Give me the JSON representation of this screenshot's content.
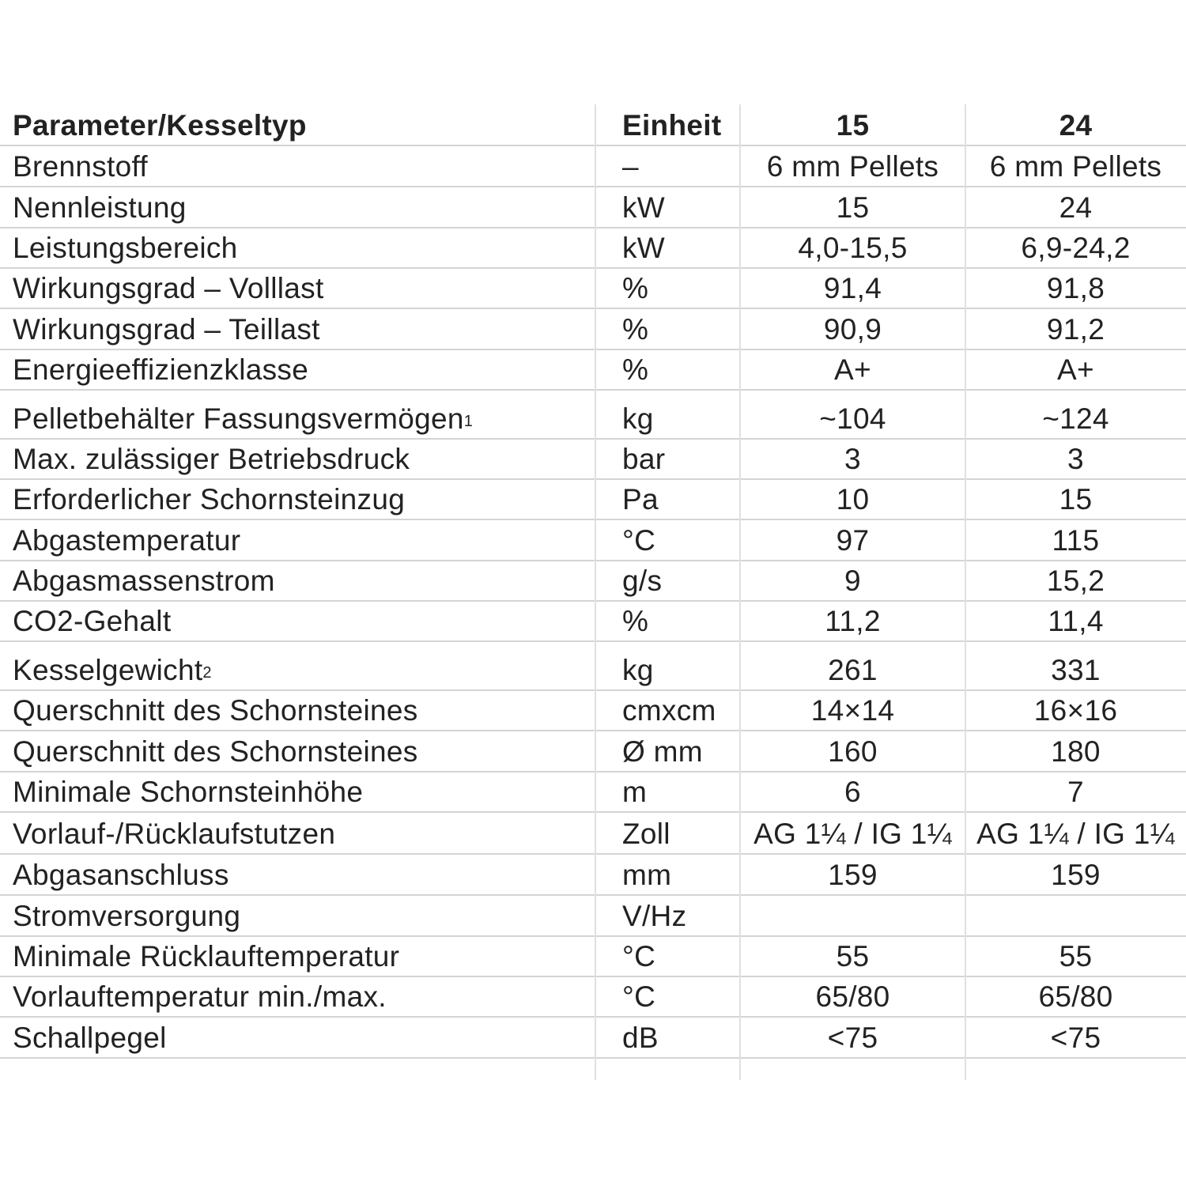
{
  "table": {
    "header": [
      "Parameter/Kesseltyp",
      "Einheit",
      "15",
      "24"
    ],
    "rows": [
      [
        "Brennstoff",
        "–",
        "6 mm Pellets",
        "6 mm Pellets"
      ],
      [
        "Nennleistung",
        "kW",
        "15",
        "24"
      ],
      [
        "Leistungsbereich",
        "kW",
        "4,0-15,5",
        "6,9-24,2"
      ],
      [
        "Wirkungsgrad – Volllast",
        "%",
        "91,4",
        "91,8"
      ],
      [
        "Wirkungsgrad – Teillast",
        "%",
        "90,9",
        "91,2"
      ],
      [
        "Energieeffizienzklasse",
        "%",
        "A+",
        "A+"
      ],
      [
        {
          "text": "Pelletbehälter Fassungsvermögen",
          "sup": "1"
        },
        "kg",
        "~104",
        "~124"
      ],
      [
        "Max. zulässiger Betriebsdruck",
        "bar",
        "3",
        "3"
      ],
      [
        "Erforderlicher Schornsteinzug",
        "Pa",
        "10",
        "15"
      ],
      [
        "Abgastemperatur",
        "°C",
        "97",
        "115"
      ],
      [
        "Abgasmassenstrom",
        "g/s",
        "9",
        "15,2"
      ],
      [
        "CO2-Gehalt",
        "%",
        "11,2",
        "11,4"
      ],
      [
        {
          "text": "Kesselgewicht",
          "sup": "2"
        },
        "kg",
        "261",
        "331"
      ],
      [
        "Querschnitt des Schornsteines",
        "cmxcm",
        "14×14",
        "16×16"
      ],
      [
        "Querschnitt des Schornsteines",
        "Ø mm",
        "160",
        "180"
      ],
      [
        "Minimale Schornsteinhöhe",
        "m",
        "6",
        "7"
      ],
      [
        "Vorlauf-/Rücklaufstutzen",
        "Zoll",
        "AG 1¼ / IG 1¼",
        "AG 1¼ / IG 1¼"
      ],
      [
        "Abgasanschluss",
        "mm",
        "159",
        "159"
      ],
      [
        "Stromversorgung",
        "V/Hz",
        null,
        null
      ],
      [
        "Minimale Rücklauftemperatur",
        "°C",
        "55",
        "55"
      ],
      [
        "Vorlauftemperatur min./max.",
        "°C",
        "65/80",
        "65/80"
      ],
      [
        "Schallpegel",
        "dB",
        "<75",
        "<75"
      ]
    ]
  }
}
